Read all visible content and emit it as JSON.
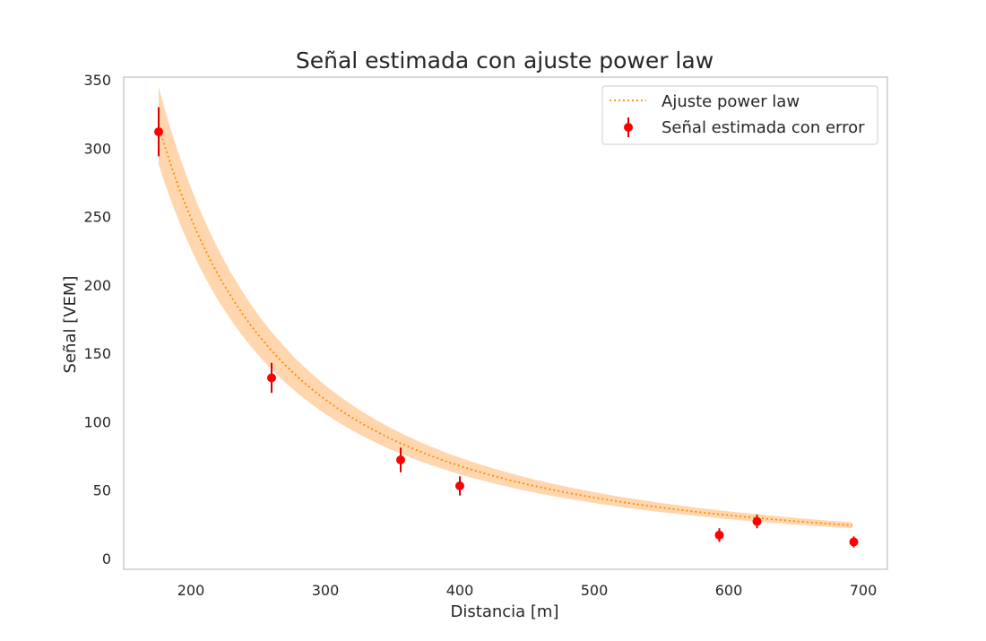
{
  "chart_data": {
    "type": "scatter",
    "title": "Señal estimada con ajuste power law",
    "xlabel": "Distancia [m]",
    "ylabel": "Señal [VEM]",
    "xlim": [
      150,
      718
    ],
    "ylim": [
      -8,
      352
    ],
    "xticks": [
      200,
      300,
      400,
      500,
      600,
      700
    ],
    "yticks": [
      0,
      50,
      100,
      150,
      200,
      250,
      300,
      350
    ],
    "grid": false,
    "legend_position": "top-right",
    "colors": {
      "points": "#ff0000",
      "errorbars": "#e00000",
      "fit_line": "#ff8c00",
      "band": "#ffc48a",
      "axes_frame": "#cccccc",
      "text": "#262626"
    },
    "series": [
      {
        "name": "Ajuste power law",
        "kind": "line",
        "style": "dotted",
        "law": {
          "form": "y = a * x^b",
          "a": 5270000.0,
          "b": -1.88
        },
        "x_range": [
          176,
          693
        ],
        "band_fraction": 0.09
      },
      {
        "name": "Señal estimada con error",
        "kind": "errorbar",
        "x": [
          176,
          260,
          356,
          400,
          593,
          621,
          693
        ],
        "y": [
          312,
          132,
          72,
          53,
          17,
          27,
          12
        ],
        "yerr": [
          18,
          11,
          9,
          7,
          5,
          5,
          4
        ]
      }
    ]
  }
}
